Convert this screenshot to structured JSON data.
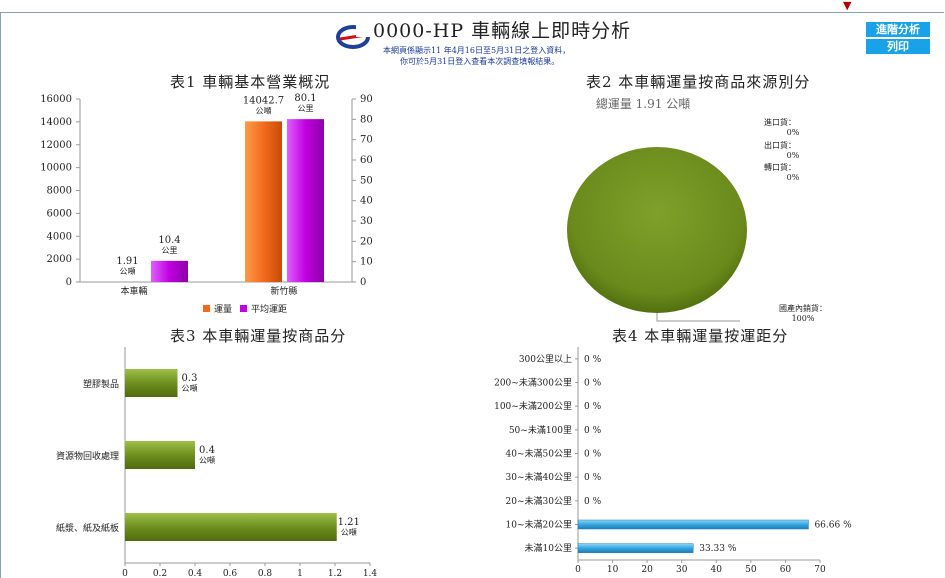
{
  "header": {
    "title": "0000-HP 車輛線上即時分析",
    "note_line1": "本網頁係顯示11 年4月16日至5月31日之登入資料，",
    "note_line2": "你可於5月31日登入查看本次調查填報結果。",
    "buttons": [
      "進階分析",
      "列印"
    ]
  },
  "colors": {
    "orange": "#f26b1d",
    "purple": "#c000e0",
    "green": "#6f8f1f",
    "blue": "#35a6e0",
    "button": "#1aa2e8"
  },
  "chart_data": [
    {
      "type": "bar",
      "title": "表1 車輛基本營業概況",
      "categories": [
        "本車輛",
        "新竹縣"
      ],
      "series": [
        {
          "name": "運量",
          "values": [
            1.91,
            14042.7
          ],
          "labels": [
            "1.91",
            "14042.7"
          ],
          "unit": "公噸",
          "axis": "left"
        },
        {
          "name": "平均運距",
          "values": [
            10.4,
            80.1
          ],
          "labels": [
            "10.4",
            "80.1"
          ],
          "unit": "公里",
          "axis": "right"
        }
      ],
      "ylim_left": [
        0,
        16000
      ],
      "yticks_left": [
        "0",
        "2000",
        "4000",
        "6000",
        "8000",
        "10000",
        "12000",
        "14000",
        "16000"
      ],
      "ylim_right": [
        0,
        90
      ],
      "yticks_right": [
        "0",
        "10",
        "20",
        "30",
        "40",
        "50",
        "60",
        "70",
        "80",
        "90"
      ],
      "legend": "bottom"
    },
    {
      "type": "pie",
      "title": "表2 本車輛運量按商品來源別分",
      "subtitle": "總運量 1.91 公噸",
      "slices": [
        {
          "name": "進口貨",
          "value": 0,
          "label": "0%"
        },
        {
          "name": "出口貨",
          "value": 0,
          "label": "0%"
        },
        {
          "name": "轉口貨",
          "value": 0,
          "label": "0%"
        },
        {
          "name": "國產內銷貨",
          "value": 100,
          "label": "100%"
        }
      ]
    },
    {
      "type": "bar",
      "orientation": "horizontal",
      "title": "表3 本車輛運量按商品分",
      "categories": [
        "塑膠製品",
        "資源物回收處理",
        "紙漿、紙及紙板"
      ],
      "values": [
        0.3,
        0.4,
        1.21
      ],
      "labels": [
        "0.3",
        "0.4",
        "1.21"
      ],
      "unit": "公噸",
      "xlim": [
        0,
        1.4
      ],
      "xticks": [
        "0",
        "0.2",
        "0.4",
        "0.6",
        "0.8",
        "1",
        "1.2",
        "1.4"
      ]
    },
    {
      "type": "bar",
      "orientation": "horizontal",
      "title": "表4 本車輛運量按運距分",
      "categories": [
        "300公里以上",
        "200~未滿300公里",
        "100~未滿200公里",
        "50~未滿100里",
        "40~未滿50公里",
        "30~未滿40公里",
        "20~未滿30公里",
        "10~未滿20公里",
        "未滿10公里"
      ],
      "values": [
        0,
        0,
        0,
        0,
        0,
        0,
        0,
        66.66,
        33.33
      ],
      "labels": [
        "0 %",
        "0 %",
        "0 %",
        "0 %",
        "0 %",
        "0 %",
        "0 %",
        "66.66 %",
        "33.33 %"
      ],
      "xlim": [
        0,
        70
      ],
      "xticks": [
        "0",
        "10",
        "20",
        "30",
        "40",
        "50",
        "60",
        "70"
      ]
    }
  ]
}
